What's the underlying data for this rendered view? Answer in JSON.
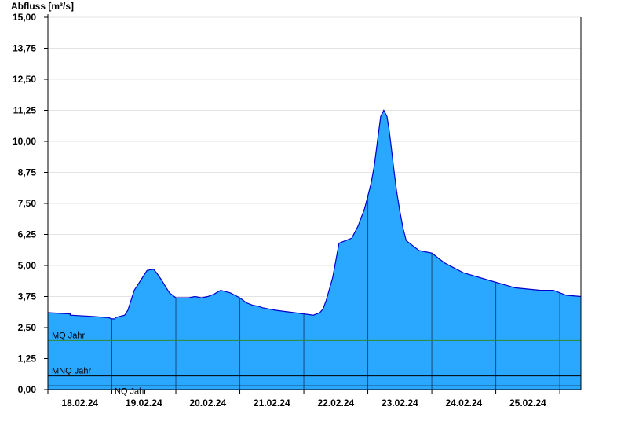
{
  "chart_data": {
    "type": "area",
    "ylabel": "Abfluss [m³/s]",
    "xlabel": "",
    "title": "",
    "ylim": [
      0,
      15
    ],
    "y_ticks": [
      "0,00",
      "1,25",
      "2,50",
      "3,75",
      "5,00",
      "6,25",
      "7,50",
      "8,75",
      "10,00",
      "11,25",
      "12,50",
      "13,75",
      "15,00"
    ],
    "x_range": [
      "17.02.24 12:00",
      "25.02.24 20:00"
    ],
    "x_tick_labels": [
      "18.02.24",
      "19.02.24",
      "20.02.24",
      "21.02.24",
      "22.02.24",
      "23.02.24",
      "24.02.24",
      "25.02.24"
    ],
    "grid": true,
    "colors": {
      "area": "#2aa7ff",
      "line": "#0000cc",
      "mq": "#2e8b2e",
      "ref": "#000000"
    },
    "reference_lines": [
      {
        "name": "MQ Jahr",
        "value": 1.98
      },
      {
        "name": "MNQ Jahr",
        "value": 0.55
      },
      {
        "name": "NQ Jahr",
        "value": 0.15
      }
    ],
    "series": [
      {
        "x": [
          0,
          0.35,
          0.35,
          0.7,
          0.7,
          0.95,
          1.0,
          1.05,
          1.05,
          1.2,
          1.25,
          1.3,
          1.35,
          1.45,
          1.55,
          1.65,
          1.7,
          1.78,
          1.85,
          1.9,
          2.0,
          2.1,
          2.2,
          2.3,
          2.4,
          2.5,
          2.6,
          2.7,
          2.85,
          3.0,
          3.1,
          3.2,
          3.3,
          3.35,
          3.45,
          3.55,
          3.7,
          3.85,
          4.0,
          4.15,
          4.2,
          4.25,
          4.3,
          4.35,
          4.45,
          4.55,
          4.65,
          4.75,
          4.85,
          4.95,
          5.0,
          5.05,
          5.1,
          5.15,
          5.2,
          5.25,
          5.3,
          5.33,
          5.36,
          5.4,
          5.45,
          5.5,
          5.55,
          5.6,
          5.7,
          5.8,
          5.9,
          6.0,
          6.1,
          6.2,
          6.35,
          6.5,
          6.7,
          6.9,
          7.1,
          7.3,
          7.5,
          7.7,
          7.9,
          8.1,
          8.33
        ],
        "y": [
          3.1,
          3.05,
          3.0,
          2.95,
          2.95,
          2.9,
          2.85,
          2.85,
          2.9,
          3.0,
          3.2,
          3.6,
          4.0,
          4.4,
          4.8,
          4.85,
          4.7,
          4.4,
          4.1,
          3.9,
          3.7,
          3.7,
          3.7,
          3.75,
          3.7,
          3.75,
          3.85,
          4.0,
          3.9,
          3.7,
          3.5,
          3.4,
          3.35,
          3.3,
          3.25,
          3.2,
          3.15,
          3.1,
          3.05,
          3.0,
          3.05,
          3.1,
          3.25,
          3.6,
          4.5,
          5.9,
          6.0,
          6.1,
          6.6,
          7.3,
          7.8,
          8.3,
          9.0,
          10.0,
          11.0,
          11.25,
          11.0,
          10.5,
          9.9,
          9.0,
          8.0,
          7.2,
          6.5,
          6.0,
          5.8,
          5.6,
          5.55,
          5.5,
          5.3,
          5.1,
          4.9,
          4.7,
          4.55,
          4.4,
          4.25,
          4.1,
          4.05,
          4.0,
          4.0,
          3.8,
          3.75
        ]
      }
    ]
  }
}
